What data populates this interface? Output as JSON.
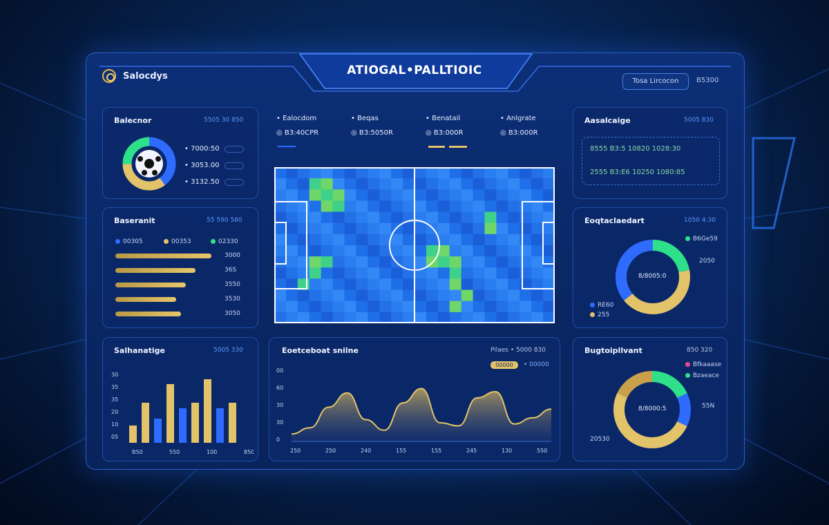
{
  "header": {
    "brand": "Salocdys",
    "title": "ATIOGAL•PALLTIOIC",
    "chip": "Tosa Lircocon",
    "chip_value": "B5300"
  },
  "colors": {
    "accent_blue": "#2f6bff",
    "accent_gold": "#e3c36a",
    "accent_green": "#2fe08a"
  },
  "panels": {
    "possession": {
      "title": "Balecnor",
      "value": "5505 30 850",
      "rows": [
        {
          "label": "• 7000:50",
          "color": "#2fe08a"
        },
        {
          "label": "• 3053.00",
          "color": "#2fe08a"
        },
        {
          "label": "• 3132.50",
          "color": "#ff5a5a"
        }
      ]
    },
    "passing": {
      "title": "Baseranit",
      "value": "55 590 580",
      "legend": [
        "00305",
        "00353",
        "02330"
      ],
      "bars": [
        {
          "value": 0.82,
          "label": "3000"
        },
        {
          "value": 0.68,
          "label": "36S"
        },
        {
          "value": 0.6,
          "label": "3550"
        },
        {
          "value": 0.52,
          "label": "3530"
        },
        {
          "value": 0.56,
          "label": "3050"
        }
      ]
    },
    "shots": {
      "title": "Salhanatige",
      "value": "5005 330",
      "ylabels": [
        "30",
        "35",
        "35",
        "20",
        "10",
        "05"
      ],
      "xlabels": [
        "B50",
        "550",
        "100",
        "850"
      ],
      "bars": [
        {
          "value": 0.25,
          "color": "#e3c36a"
        },
        {
          "value": 0.58,
          "color": "#e3c36a"
        },
        {
          "value": 0.35,
          "color": "#2f6bff"
        },
        {
          "value": 0.85,
          "color": "#e3c36a"
        },
        {
          "value": 0.5,
          "color": "#2f6bff"
        },
        {
          "value": 0.58,
          "color": "#e3c36a"
        },
        {
          "value": 0.92,
          "color": "#e3c36a"
        },
        {
          "value": 0.5,
          "color": "#2f6bff"
        },
        {
          "value": 0.58,
          "color": "#e3c36a"
        }
      ]
    },
    "heatmap_header": {
      "items": [
        {
          "label": "Ealocdom",
          "sub": "B3:40CPR",
          "color": "#e3c36a"
        },
        {
          "label": "Beqas",
          "sub": "B3:5050R",
          "color": "#e3c36a"
        },
        {
          "label": "Benatail",
          "sub": "B3:000R",
          "color": "#e3c36a"
        },
        {
          "label": "Anlgrate",
          "sub": "B3:000R",
          "color": "#e3c36a"
        }
      ]
    },
    "timeline": {
      "title": "Eoetceboat snilne",
      "value": "Pilaes • 5000 830",
      "legend_chip": "00000",
      "legend_text": "• 00000",
      "ylabels": [
        "00",
        "60",
        "30",
        "30",
        "0"
      ],
      "xlabels": [
        "250",
        "250",
        "240",
        "155",
        "155",
        "245",
        "130",
        "550"
      ],
      "series": [
        0.12,
        0.22,
        0.55,
        0.78,
        0.35,
        0.18,
        0.62,
        0.85,
        0.3,
        0.25,
        0.7,
        0.8,
        0.28,
        0.38,
        0.52
      ]
    },
    "right_top": {
      "title": "Aasalcaige",
      "value": "5005 830",
      "row1": "8555 B3:5 10820 1028:30",
      "row2": "2555 B3:E6 10250 1080:85"
    },
    "right_mid": {
      "title": "Eoqtaclaedart",
      "value": "1050 4:30",
      "center": "8/8005:0",
      "callouts": [
        "B6Ge59",
        "2050",
        "RE60",
        "255"
      ],
      "slices": [
        {
          "value": 0.22,
          "color": "#2fe08a"
        },
        {
          "value": 0.42,
          "color": "#e3c36a"
        },
        {
          "value": 0.36,
          "color": "#2f6bff"
        }
      ]
    },
    "right_bot": {
      "title": "Bugtoipllvant",
      "value": "850 320",
      "center": "8/8000:5",
      "callouts": [
        "Bfkaaase",
        "Bzaeace",
        "55N",
        "20530"
      ],
      "slices": [
        {
          "value": 0.18,
          "color": "#2fe08a"
        },
        {
          "value": 0.14,
          "color": "#2f6bff"
        },
        {
          "value": 0.5,
          "color": "#e3c36a"
        },
        {
          "value": 0.18,
          "color": "#c9a14a"
        }
      ]
    }
  }
}
